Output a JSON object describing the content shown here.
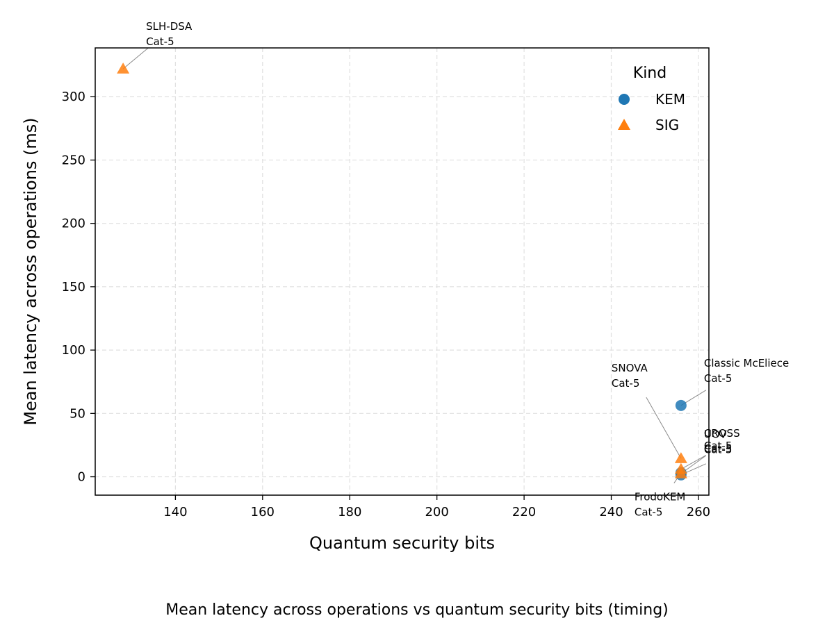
{
  "chart_data": {
    "type": "scatter",
    "title": "",
    "caption": "Mean latency across operations vs quantum security bits (timing)",
    "xlabel": "Quantum security bits",
    "ylabel": "Mean latency across operations (ms)",
    "xlim": [
      121.6,
      262.4
    ],
    "ylim": [
      -14.5,
      338.5
    ],
    "xticks": [
      140,
      160,
      180,
      200,
      220,
      240,
      260
    ],
    "yticks": [
      0,
      50,
      100,
      150,
      200,
      250,
      300
    ],
    "grid": true,
    "legend": {
      "title": "Kind",
      "placement": "top-right",
      "entries": [
        {
          "name": "KEM",
          "marker": "circle",
          "color": "#1f77b4"
        },
        {
          "name": "SIG",
          "marker": "triangle",
          "color": "#ff7f0e"
        }
      ]
    },
    "series": [
      {
        "name": "KEM",
        "color": "#1f77b4",
        "marker": "circle",
        "points": [
          {
            "x": 256,
            "y": 56.3,
            "label_lines": [
              "Classic McEliece",
              "Cat-5"
            ]
          },
          {
            "x": 256,
            "y": 3.2,
            "label_lines": [
              "FrodoKEM",
              "Cat-5"
            ]
          },
          {
            "x": 256,
            "y": 1.5,
            "label_lines": [
              "Cat-5"
            ]
          }
        ]
      },
      {
        "name": "SIG",
        "color": "#ff7f0e",
        "marker": "triangle",
        "points": [
          {
            "x": 128,
            "y": 322.0,
            "label_lines": [
              "SLH-DSA",
              "Cat-5"
            ]
          },
          {
            "x": 256,
            "y": 14.5,
            "label_lines": [
              "SNOVA",
              "Cat-5"
            ]
          },
          {
            "x": 256,
            "y": 6.0,
            "label_lines": [
              "UOV",
              "Cat-5"
            ]
          },
          {
            "x": 256,
            "y": 2.5,
            "label_lines": [
              "CROSS",
              "Cat-5"
            ]
          }
        ]
      }
    ]
  }
}
